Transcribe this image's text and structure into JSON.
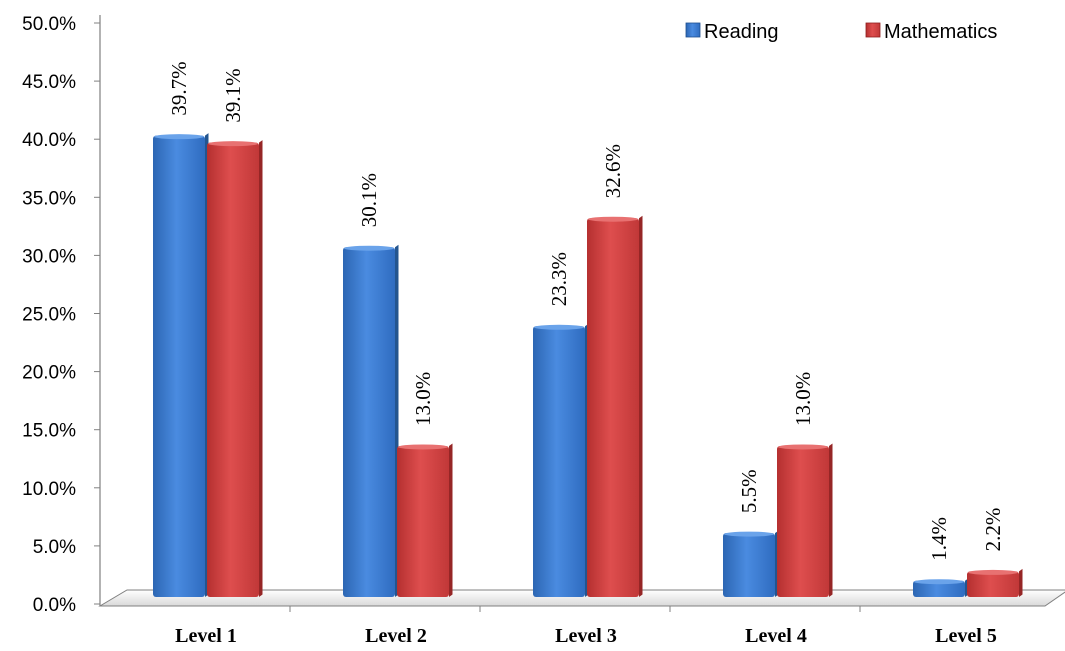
{
  "chart_data": {
    "type": "bar",
    "categories": [
      "Level 1",
      "Level 2",
      "Level 3",
      "Level 4",
      "Level 5"
    ],
    "series": [
      {
        "name": "Reading",
        "values": [
          39.7,
          30.1,
          23.3,
          5.5,
          1.4
        ],
        "labels": [
          "39.7%",
          "30.1%",
          "23.3%",
          "5.5%",
          "1.4%"
        ],
        "color": "#3f7fce"
      },
      {
        "name": "Mathematics",
        "values": [
          39.1,
          13.0,
          32.6,
          13.0,
          2.2
        ],
        "labels": [
          "39.1%",
          "13.0%",
          "32.6%",
          "13.0%",
          "2.2%"
        ],
        "color": "#d24242"
      }
    ],
    "yticks": [
      "0.0%",
      "5.0%",
      "10.0%",
      "15.0%",
      "20.0%",
      "25.0%",
      "30.0%",
      "35.0%",
      "40.0%",
      "45.0%",
      "50.0%"
    ],
    "ylim": [
      0,
      50
    ],
    "grid": false,
    "legend_position": "top-right",
    "bar_style": "3d"
  }
}
